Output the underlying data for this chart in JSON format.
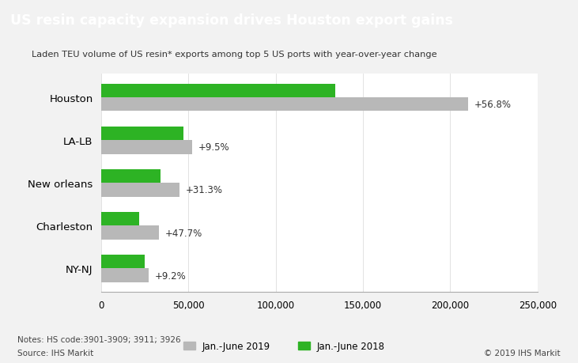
{
  "title": "US resin capacity expansion drives Houston export gains",
  "subtitle": "Laden TEU volume of US resin* exports among top 5 US ports with year-over-year change",
  "categories": [
    "Houston",
    "LA-LB",
    "New orleans",
    "Charleston",
    "NY-NJ"
  ],
  "values_2019": [
    210000,
    52000,
    45000,
    33000,
    27000
  ],
  "values_2018": [
    134000,
    47000,
    34000,
    22000,
    25000
  ],
  "changes": [
    "+56.8%",
    "+9.5%",
    "+31.3%",
    "+47.7%",
    "+9.2%"
  ],
  "color_2019": "#b8b8b8",
  "color_2018": "#2db324",
  "title_bg": "#636363",
  "title_color": "#ffffff",
  "chart_bg": "#f2f2f2",
  "plot_bg": "#ffffff",
  "legend_label_2019": "Jan.-June 2019",
  "legend_label_2018": "Jan.-June 2018",
  "notes_line1": "Notes: HS code:3901-3909; 3911; 3926",
  "notes_line2": "Source: IHS Markit",
  "copyright": "© 2019 IHS Markit",
  "xlim": [
    0,
    250000
  ],
  "xticks": [
    0,
    50000,
    100000,
    150000,
    200000,
    250000
  ],
  "xtick_labels": [
    "0",
    "50,000",
    "100,000",
    "150,000",
    "200,000",
    "250,000"
  ]
}
